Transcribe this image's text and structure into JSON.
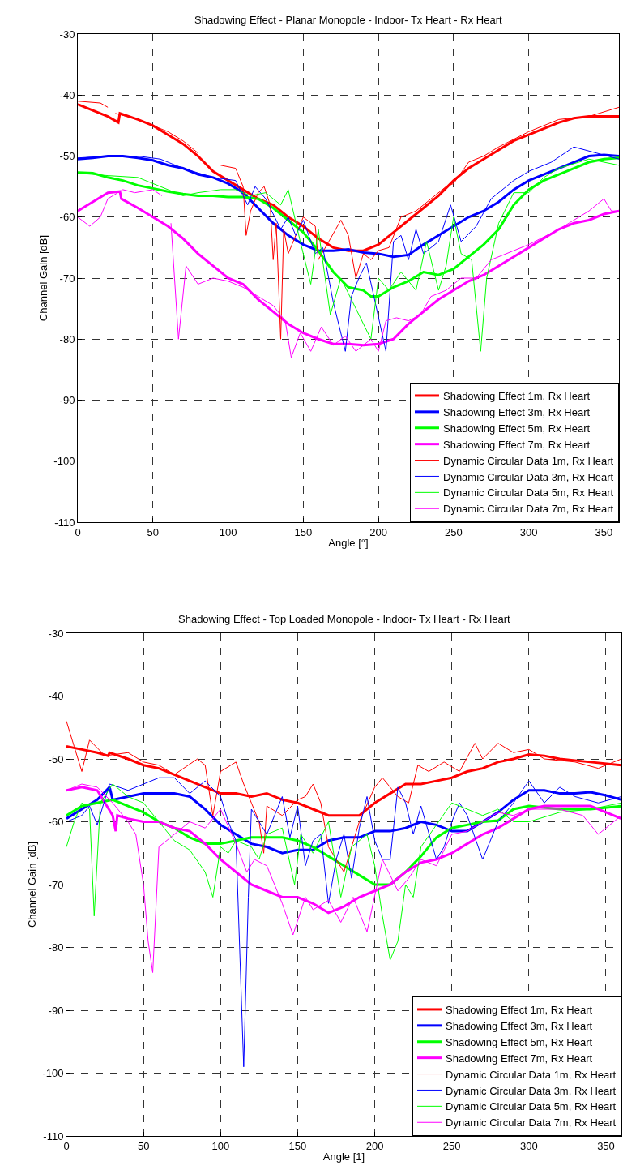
{
  "chart_data": [
    {
      "type": "line",
      "title": "Shadowing Effect - Planar Monopole - Indoor- Tx Heart - Rx Heart",
      "xlabel": "Angle [°]",
      "ylabel": "Channel Gain [dB]",
      "xlim": [
        0,
        360
      ],
      "ylim": [
        -110,
        -30
      ],
      "xticks": [
        0,
        50,
        100,
        150,
        200,
        250,
        300,
        350
      ],
      "yticks": [
        -110,
        -100,
        -90,
        -80,
        -70,
        -60,
        -50,
        -40,
        -30
      ],
      "grid": true,
      "legend": "bottom right",
      "line_style": "solid",
      "marker": "none",
      "series": [
        {
          "name": "Shadowing Effect 1m, Rx Heart",
          "color": "#ff0000",
          "x": [
            0,
            10,
            20,
            27,
            28,
            40,
            50,
            60,
            70,
            80,
            90,
            100,
            110,
            120,
            130,
            140,
            150,
            160,
            170,
            180,
            190,
            200,
            210,
            220,
            230,
            240,
            250,
            260,
            270,
            280,
            290,
            300,
            310,
            320,
            330,
            340,
            360
          ],
          "values": [
            -41.5,
            -42.5,
            -43.5,
            -44.5,
            -43,
            -44,
            -45,
            -46.5,
            -48,
            -50,
            -52.5,
            -54,
            -55.5,
            -57,
            -58,
            -60,
            -61.5,
            -63.5,
            -65,
            -65.5,
            -65.5,
            -64.5,
            -62.5,
            -60.5,
            -58.5,
            -56.5,
            -54,
            -52,
            -50.5,
            -49,
            -47.5,
            -46.5,
            -45.5,
            -44.5,
            -43.8,
            -43.5,
            -43.5
          ]
        },
        {
          "name": "Shadowing Effect 3m, Rx Heart",
          "color": "#0000ff",
          "x": [
            0,
            10,
            20,
            30,
            40,
            50,
            60,
            70,
            80,
            90,
            100,
            110,
            120,
            130,
            140,
            150,
            160,
            170,
            180,
            190,
            200,
            210,
            220,
            230,
            240,
            250,
            260,
            270,
            280,
            290,
            300,
            310,
            320,
            330,
            340,
            350,
            360
          ],
          "values": [
            -50.5,
            -50.3,
            -50,
            -50,
            -50.3,
            -50.7,
            -51.5,
            -52,
            -53,
            -53.5,
            -54.5,
            -56,
            -58.5,
            -61,
            -63,
            -64.5,
            -65.5,
            -65.5,
            -65.3,
            -65.8,
            -66,
            -66.5,
            -66.2,
            -64.5,
            -63,
            -61.5,
            -60,
            -59,
            -57.5,
            -55.5,
            -54,
            -53,
            -52,
            -51,
            -50,
            -49.8,
            -50
          ]
        },
        {
          "name": "Shadowing Effect 5m, Rx Heart",
          "color": "#00ff00",
          "x": [
            0,
            10,
            20,
            30,
            40,
            50,
            60,
            70,
            80,
            90,
            100,
            110,
            120,
            130,
            140,
            150,
            160,
            170,
            180,
            190,
            195,
            200,
            210,
            220,
            230,
            240,
            250,
            260,
            270,
            280,
            290,
            300,
            310,
            320,
            330,
            340,
            350,
            360
          ],
          "values": [
            -52.7,
            -52.8,
            -53.5,
            -54,
            -54.8,
            -55.3,
            -55.8,
            -56.2,
            -56.5,
            -56.5,
            -56.7,
            -56.7,
            -57,
            -58.5,
            -60.5,
            -62.5,
            -65.5,
            -69,
            -71.5,
            -72,
            -73,
            -73,
            -71.5,
            -70.5,
            -69,
            -69.5,
            -68.5,
            -66.5,
            -64.5,
            -62,
            -58,
            -55.5,
            -54,
            -53,
            -52,
            -51,
            -50.5,
            -50.3
          ]
        },
        {
          "name": "Shadowing Effect 7m, Rx Heart",
          "color": "#ff00ff",
          "x": [
            0,
            10,
            20,
            28,
            29,
            40,
            50,
            60,
            70,
            80,
            90,
            100,
            110,
            120,
            130,
            140,
            150,
            160,
            170,
            180,
            190,
            200,
            210,
            220,
            230,
            240,
            250,
            260,
            270,
            280,
            290,
            300,
            310,
            320,
            330,
            340,
            350,
            360
          ],
          "values": [
            -59,
            -57.5,
            -56,
            -55.8,
            -57,
            -58.5,
            -60,
            -61.5,
            -63.5,
            -66,
            -68,
            -70,
            -71,
            -73.5,
            -75.5,
            -77.5,
            -79,
            -80,
            -80.8,
            -80.8,
            -81,
            -80.8,
            -80,
            -77.5,
            -75.5,
            -73.5,
            -72,
            -70.5,
            -69.5,
            -68,
            -66.5,
            -65,
            -63.5,
            -62,
            -61,
            -60.5,
            -59.5,
            -59
          ]
        },
        {
          "name": "Dynamic Circular Data 1m, Rx Heart",
          "color": "#ff0000",
          "x": [
            0,
            15,
            20,
            22,
            25,
            40,
            60,
            70,
            80,
            88,
            95,
            105,
            110,
            112,
            115,
            120,
            124,
            128,
            130,
            132,
            135,
            137,
            140,
            150,
            158,
            160,
            167,
            175,
            180,
            185,
            190,
            195,
            200,
            207,
            215,
            225,
            235,
            245,
            250,
            260,
            270,
            280,
            300,
            320,
            340,
            360
          ],
          "values": [
            -41,
            -41.3,
            -42,
            null,
            -43,
            -44,
            -46,
            -47.5,
            -49.5,
            null,
            -51.5,
            -52,
            -55,
            -63,
            -59,
            -56,
            -55,
            -58,
            -67,
            -61,
            -80,
            -62,
            -66,
            -60,
            -61.5,
            -67,
            -64,
            -60.5,
            -63,
            -70,
            -66,
            -67,
            -65.5,
            -65,
            -60,
            -59,
            -57,
            -55,
            -54.5,
            -51,
            -50,
            -48.5,
            -46,
            -44,
            -43.5,
            -42
          ]
        },
        {
          "name": "Dynamic Circular Data 3m, Rx Heart",
          "color": "#0000ff",
          "x": [
            0,
            20,
            40,
            55,
            70,
            90,
            105,
            113,
            118,
            125,
            135,
            140,
            145,
            150,
            158,
            163,
            170,
            178,
            182,
            187,
            192,
            197,
            205,
            210,
            215,
            220,
            225,
            230,
            240,
            248,
            255,
            265,
            275,
            290,
            300,
            315,
            330,
            345,
            360
          ],
          "values": [
            -50.3,
            -50,
            -50,
            -50.5,
            -52,
            -53.5,
            -54,
            -58,
            -55,
            -57,
            -62,
            -60,
            -63,
            -60.5,
            -66,
            -65,
            -74,
            -82,
            -73,
            -70,
            -67.5,
            -73,
            -82,
            -64,
            -63,
            -67,
            -62,
            -66,
            -64,
            -58,
            -64,
            -61.5,
            -57,
            -54,
            -52.5,
            -51,
            -48.5,
            -49.5,
            -50.5
          ]
        },
        {
          "name": "Dynamic Circular Data 5m, Rx Heart",
          "color": "#00ff00",
          "x": [
            0,
            20,
            40,
            55,
            70,
            80,
            95,
            105,
            115,
            125,
            135,
            140,
            148,
            155,
            160,
            168,
            175,
            185,
            195,
            200,
            207,
            215,
            225,
            232,
            240,
            245,
            250,
            255,
            262,
            268,
            272,
            280,
            290,
            300,
            310,
            320,
            340,
            360
          ],
          "values": [
            -52.8,
            -53.2,
            -53.5,
            -55,
            -56.5,
            -56,
            -55.5,
            -55.5,
            -56.5,
            -56,
            -58,
            -55.5,
            -64,
            -71,
            -62,
            -76,
            -70,
            -75,
            -80,
            -70,
            -72,
            -69,
            -72,
            -64,
            -72,
            -68,
            -60,
            -66,
            -67,
            -82,
            -70,
            -61,
            -56,
            -56,
            -53.5,
            -52,
            -50.5,
            -51.5
          ]
        },
        {
          "name": "Dynamic Circular Data 7m, Rx Heart",
          "color": "#ff00ff",
          "x": [
            0,
            8,
            15,
            20,
            30,
            38,
            50,
            56,
            59,
            62,
            67,
            72,
            80,
            90,
            100,
            110,
            120,
            130,
            138,
            142,
            148,
            155,
            162,
            170,
            178,
            185,
            195,
            200,
            205,
            212,
            220,
            228,
            235,
            245,
            255,
            265,
            275,
            285,
            300,
            320,
            340,
            350,
            355,
            360
          ],
          "values": [
            -60,
            -61.5,
            -60,
            -57,
            -55.5,
            -56,
            -55.5,
            -56.5,
            null,
            -61,
            -80,
            -68,
            -71,
            -70,
            -70.5,
            -71.5,
            -73,
            -74.5,
            -77,
            -83,
            -79,
            -82,
            -78,
            -81,
            -79.5,
            -82,
            -80,
            -82,
            -77,
            -76.5,
            -77,
            -76,
            -73,
            -72,
            -70,
            -70,
            -67,
            -66,
            -64.5,
            -62,
            -59,
            -57,
            -59,
            -59
          ]
        }
      ]
    },
    {
      "type": "line",
      "title": "Shadowing Effect - Top Loaded Monopole - Indoor- Tx Heart - Rx Heart",
      "xlabel": "Angle [1]",
      "ylabel": "Channel Gain [dB]",
      "xlim": [
        0,
        360
      ],
      "ylim": [
        -110,
        -30
      ],
      "xticks": [
        0,
        50,
        100,
        150,
        200,
        250,
        300,
        350
      ],
      "yticks": [
        -110,
        -100,
        -90,
        -80,
        -70,
        -60,
        -50,
        -40,
        -30
      ],
      "grid": true,
      "legend": "bottom right",
      "line_style": "solid",
      "marker": "none",
      "series": [
        {
          "name": "Shadowing Effect 1m, Rx Heart",
          "color": "#ff0000",
          "x": [
            0,
            10,
            20,
            27,
            28,
            40,
            50,
            60,
            70,
            80,
            90,
            100,
            110,
            120,
            130,
            140,
            150,
            160,
            170,
            180,
            190,
            200,
            210,
            220,
            230,
            240,
            250,
            260,
            270,
            280,
            290,
            300,
            310,
            320,
            340,
            360
          ],
          "values": [
            -48,
            -48.5,
            -49,
            -49.5,
            -49,
            -50,
            -51,
            -51.5,
            -52.5,
            -53.5,
            -54.5,
            -55.5,
            -55.5,
            -56,
            -55.5,
            -56.5,
            -57,
            -58,
            -59,
            -59,
            -59,
            -57,
            -55.5,
            -54,
            -54,
            -53.5,
            -53,
            -52,
            -51.5,
            -50.5,
            -50,
            -49.3,
            -49.5,
            -50,
            -50.5,
            -51
          ]
        },
        {
          "name": "Shadowing Effect 3m, Rx Heart",
          "color": "#0000ff",
          "x": [
            0,
            10,
            20,
            28,
            30,
            40,
            50,
            60,
            70,
            80,
            90,
            100,
            110,
            120,
            130,
            140,
            150,
            160,
            170,
            180,
            190,
            200,
            210,
            220,
            230,
            240,
            250,
            260,
            270,
            280,
            290,
            300,
            310,
            320,
            330,
            340,
            350,
            360
          ],
          "values": [
            -59.5,
            -58,
            -56.5,
            -54.5,
            -56.5,
            -56,
            -55.5,
            -55.5,
            -55.5,
            -56,
            -58,
            -60.5,
            -62,
            -63.5,
            -64,
            -65,
            -64.5,
            -64.5,
            -63,
            -62.5,
            -62.5,
            -61.5,
            -61.5,
            -61,
            -60,
            -60.5,
            -61.5,
            -61.5,
            -60,
            -58.5,
            -56.5,
            -55,
            -55,
            -55.5,
            -55.5,
            -55.3,
            -55.8,
            -56.5
          ]
        },
        {
          "name": "Shadowing Effect 5m, Rx Heart",
          "color": "#00ff00",
          "x": [
            0,
            10,
            20,
            30,
            40,
            50,
            60,
            70,
            80,
            90,
            100,
            110,
            120,
            130,
            140,
            150,
            160,
            170,
            180,
            190,
            200,
            210,
            220,
            230,
            240,
            250,
            260,
            270,
            280,
            290,
            300,
            320,
            340,
            360
          ],
          "values": [
            -59,
            -57.5,
            -57,
            -56.5,
            -57.5,
            -58.5,
            -60,
            -61,
            -62.5,
            -63.5,
            -63.5,
            -63,
            -62.5,
            -62.5,
            -62.5,
            -63,
            -64,
            -65.5,
            -67,
            -68.5,
            -70,
            -70,
            -68,
            -65.5,
            -62.5,
            -61,
            -60.5,
            -60,
            -59.8,
            -58,
            -57.5,
            -58,
            -58,
            -57.5
          ]
        },
        {
          "name": "Shadowing Effect 7m, Rx Heart",
          "color": "#ff00ff",
          "x": [
            0,
            10,
            20,
            30,
            32,
            33,
            40,
            50,
            60,
            70,
            80,
            90,
            100,
            110,
            120,
            130,
            140,
            150,
            160,
            170,
            180,
            190,
            200,
            210,
            220,
            230,
            240,
            250,
            260,
            270,
            280,
            290,
            300,
            310,
            320,
            340,
            360
          ],
          "values": [
            -55,
            -54.5,
            -55,
            -59,
            -61.5,
            -59,
            -59.5,
            -60,
            -60,
            -61,
            -61.5,
            -63.5,
            -66,
            -68,
            -70,
            -71,
            -72,
            -72,
            -73,
            -74.5,
            -73.5,
            -72,
            -71,
            -70,
            -68,
            -66.5,
            -66,
            -65,
            -63.5,
            -62,
            -61,
            -59.5,
            -58,
            -57.5,
            -57.5,
            -57.5,
            -59.5
          ]
        },
        {
          "name": "Dynamic Circular Data 1m, Rx Heart",
          "color": "#ff0000",
          "x": [
            0,
            5,
            10,
            15,
            25,
            40,
            50,
            60,
            70,
            85,
            90,
            95,
            100,
            110,
            115,
            120,
            125,
            128,
            130,
            140,
            150,
            155,
            160,
            165,
            170,
            175,
            180,
            185,
            190,
            200,
            205,
            215,
            222,
            228,
            235,
            245,
            255,
            265,
            270,
            280,
            290,
            300,
            310,
            330,
            345,
            360
          ],
          "values": [
            -44,
            -48,
            -52,
            -47,
            -49.5,
            -49,
            -50.5,
            -51,
            -52.5,
            -50,
            -51,
            -59,
            -52,
            -50.5,
            -54,
            -57,
            -60,
            -65,
            -57.5,
            -59,
            -56.5,
            -56,
            -54,
            -57,
            -64,
            -66,
            -68,
            -64,
            -60,
            -54.5,
            -53,
            -56,
            -57,
            -51,
            -52,
            -50.5,
            -52,
            -47.5,
            -50,
            -47.5,
            -49,
            -48.5,
            -50,
            -50.5,
            -51.5,
            -50
          ]
        },
        {
          "name": "Dynamic Circular Data 3m, Rx Heart",
          "color": "#0000ff",
          "x": [
            0,
            10,
            15,
            20,
            28,
            40,
            60,
            70,
            80,
            90,
            100,
            105,
            110,
            115,
            118,
            120,
            125,
            130,
            140,
            145,
            150,
            155,
            160,
            165,
            170,
            175,
            180,
            185,
            190,
            195,
            200,
            205,
            210,
            215,
            220,
            225,
            230,
            240,
            245,
            250,
            255,
            260,
            270,
            280,
            290,
            300,
            310,
            320,
            330,
            345,
            360
          ],
          "values": [
            -60,
            -59,
            -57.5,
            -60.5,
            -54,
            -55,
            -53,
            -53,
            -55.5,
            -53.5,
            -56,
            -60,
            -63,
            -99,
            -72,
            -58,
            -60,
            -62,
            -56,
            -62.5,
            -57.5,
            -67,
            -63,
            -62,
            -73,
            -66,
            -62,
            -69,
            -61,
            -56,
            -63,
            -66,
            -66,
            -54.5,
            -57,
            -62,
            -57.5,
            -66,
            -64,
            -60,
            -57,
            -59,
            -66,
            -60,
            -57,
            -53.5,
            -57,
            -54.5,
            -56,
            -57,
            -56
          ]
        },
        {
          "name": "Dynamic Circular Data 5m, Rx Heart",
          "color": "#00ff00",
          "x": [
            0,
            5,
            10,
            15,
            18,
            22,
            30,
            40,
            50,
            60,
            70,
            80,
            90,
            95,
            100,
            105,
            110,
            120,
            125,
            130,
            140,
            148,
            152,
            160,
            170,
            178,
            185,
            195,
            200,
            205,
            210,
            215,
            220,
            225,
            230,
            240,
            250,
            260,
            270,
            280,
            290,
            300,
            320,
            340,
            360
          ],
          "values": [
            -64,
            -60,
            -57,
            -58,
            -75,
            -57,
            -54,
            -56,
            -57,
            -60,
            -63,
            -64.5,
            -68,
            -72,
            -64,
            -65,
            -63,
            -64,
            -66,
            -62,
            -61,
            -70,
            -62,
            -65,
            -60,
            -72,
            -64,
            -62,
            -67,
            -75,
            -82,
            -79,
            -70,
            -72,
            -64,
            -60.5,
            -57,
            -58,
            -59,
            -58,
            -60,
            -60,
            -58.5,
            -58,
            -57
          ]
        },
        {
          "name": "Dynamic Circular Data 7m, Rx Heart",
          "color": "#ff00ff",
          "x": [
            0,
            10,
            20,
            30,
            40,
            45,
            50,
            53,
            56,
            60,
            70,
            80,
            90,
            100,
            110,
            117,
            122,
            130,
            140,
            147,
            155,
            160,
            170,
            178,
            186,
            195,
            205,
            215,
            222,
            230,
            240,
            250,
            260,
            270,
            280,
            290,
            300,
            320,
            335,
            345,
            350,
            360
          ],
          "values": [
            -55,
            -54,
            -54.5,
            -57,
            -60,
            -62,
            -70,
            -79,
            -84,
            -64,
            -62,
            -60,
            -61,
            -58,
            -63.5,
            -68,
            -66,
            -67,
            -73,
            -78,
            -72,
            -74,
            -72.5,
            -76,
            -72,
            -77.5,
            -66,
            -71,
            -69,
            -66,
            -67,
            -62,
            -61.5,
            -60,
            -58.5,
            -59,
            -58,
            -58,
            -59,
            -62,
            -61,
            -59
          ]
        }
      ]
    }
  ]
}
